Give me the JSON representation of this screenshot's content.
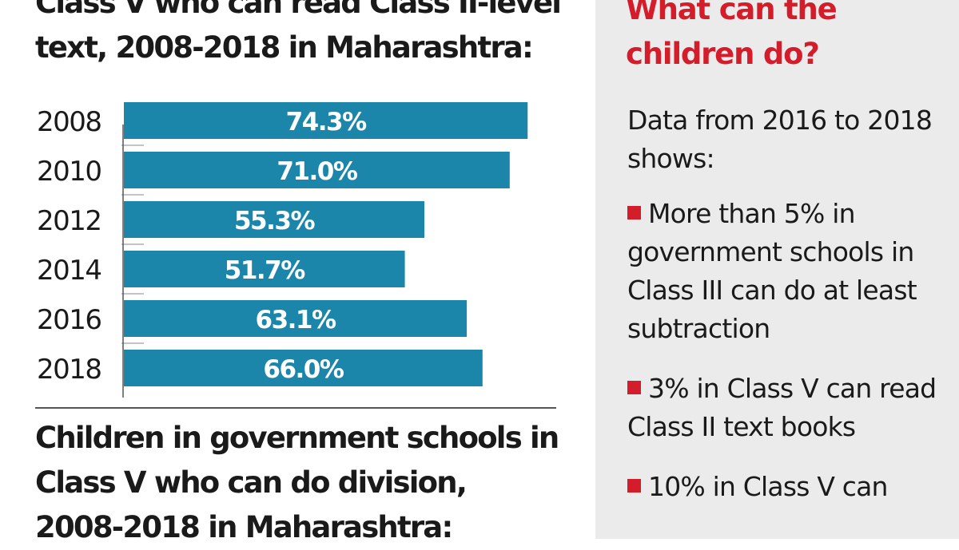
{
  "chart_data": {
    "type": "bar",
    "orientation": "horizontal",
    "title_lines": [
      "Class V who can read Class II-level",
      "text, 2008-2018 in Maharashtra:"
    ],
    "categories": [
      "2008",
      "2010",
      "2012",
      "2014",
      "2016",
      "2018"
    ],
    "values": [
      74.3,
      71.0,
      55.3,
      51.7,
      63.1,
      66.0
    ],
    "value_labels": [
      "74.3%",
      "71.0%",
      "55.3%",
      "51.7%",
      "63.1%",
      "66.0%"
    ],
    "xlim": [
      0,
      100
    ],
    "bar_color": "#1b86a9",
    "label_color": "#ffffff",
    "xlabel": "",
    "ylabel": ""
  },
  "second_chart": {
    "title_lines": [
      "Children in government schools in",
      "Class V who can do division,",
      "2008-2018 in Maharashtra:"
    ]
  },
  "sidebar": {
    "title": "What can the children do?",
    "title_color": "#d41d2a",
    "background": "#ebebeb",
    "intro": "Data from 2016 to 2018 shows:",
    "bullets": [
      "More than 5% in government schools in Class III can do at least subtraction",
      "3% in Class  V can read Class II text books",
      "10% in Class V can"
    ],
    "bullet_color": "#d41d2a"
  }
}
